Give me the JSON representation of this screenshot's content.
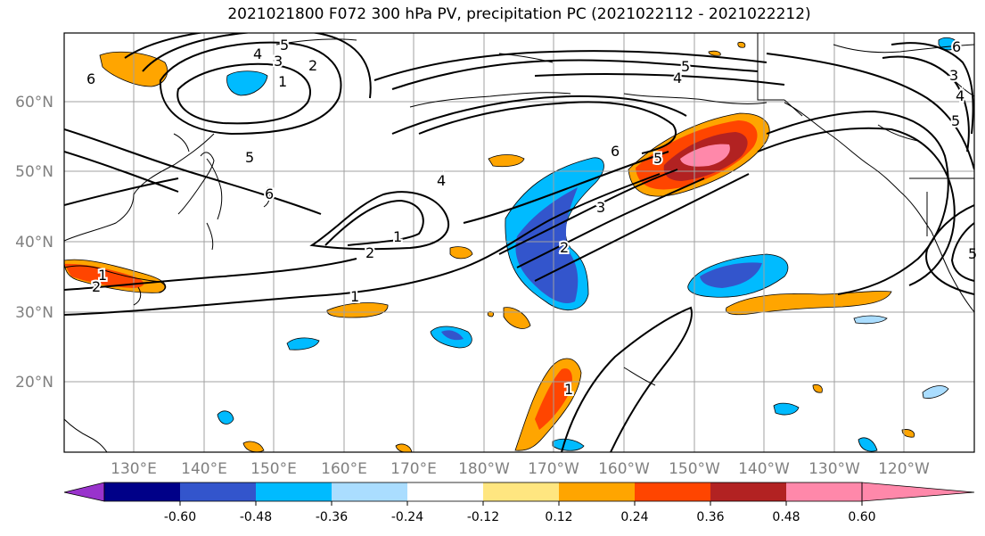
{
  "title": "2021021800 F072 300 hPa PV, precipitation PC (2021022112 - 2021022212)",
  "lat_labels": [
    "60°N",
    "50°N",
    "40°N",
    "30°N",
    "20°N"
  ],
  "lon_labels": [
    "130°E",
    "140°E",
    "150°E",
    "160°E",
    "170°E",
    "180°W",
    "170°W",
    "160°W",
    "150°W",
    "140°W",
    "130°W",
    "120°W"
  ],
  "contour_labels": [
    "5",
    "4",
    "3",
    "2",
    "1",
    "6",
    "5",
    "6",
    "4",
    "1",
    "2",
    "1",
    "2",
    "1",
    "6",
    "3",
    "2",
    "5",
    "4",
    "5",
    "3",
    "4",
    "5",
    "5",
    "6",
    "1"
  ],
  "colorbar": {
    "colors": [
      "#9933cc",
      "#000088",
      "#3355cc",
      "#00bbff",
      "#aaddff",
      "#ffffff",
      "#ffe680",
      "#ffa500",
      "#ff4500",
      "#b22222",
      "#ff88aa"
    ],
    "tick_labels": [
      "-0.60",
      "-0.48",
      "-0.36",
      "-0.24",
      "-0.12",
      "0.12",
      "0.24",
      "0.36",
      "0.48",
      "0.60"
    ]
  },
  "chart_data": {
    "type": "contour map",
    "variable_contours": "300 hPa PV",
    "variable_shading": "precipitation PC",
    "region": "North Pacific",
    "lat_range": [
      10,
      70
    ],
    "lon_range_deg_east": [
      120,
      250
    ],
    "grid": true,
    "shading_levels": [
      -0.6,
      -0.48,
      -0.36,
      -0.24,
      -0.12,
      0.12,
      0.24,
      0.36,
      0.48,
      0.6
    ],
    "contour_levels": [
      1,
      2,
      3,
      4,
      5,
      6
    ]
  }
}
